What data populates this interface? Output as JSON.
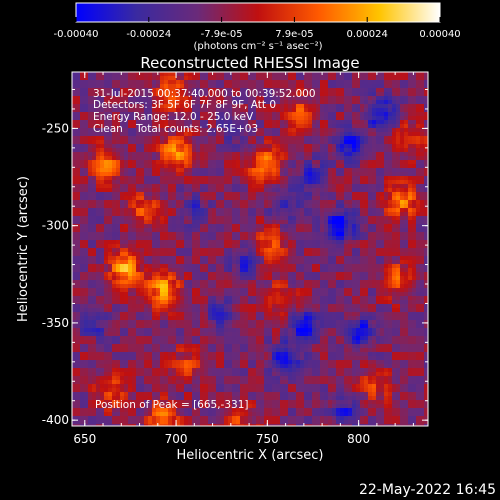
{
  "colorbar": {
    "tick_labels": [
      "-0.00040",
      "-0.00024",
      "-7.9e-05",
      "7.9e-05",
      "0.00024",
      "0.00040"
    ],
    "unit_label": "(photons cm⁻² s⁻¹ asec⁻²)",
    "range": [
      -0.0004,
      0.0004
    ],
    "colors": [
      "#0000ff",
      "#3a2aa0",
      "#6a2a7a",
      "#c01010",
      "#ff5a00",
      "#ffc400",
      "#ffffff"
    ]
  },
  "title": "Reconstructed RHESSI Image",
  "info_lines": [
    "31-Jul-2015 00:37:40.000 to 00:39:52.000",
    "Detectors: 3F 5F 6F 7F 8F 9F, Att 0",
    "Energy Range: 12.0 - 25.0 keV",
    "Clean    Total counts: 2.65E+03"
  ],
  "peak_label": "Position of Peak = [665,-331]",
  "x_axis": {
    "label": "Heliocentric X (arcsec)",
    "ticks": [
      "650",
      "700",
      "750",
      "800"
    ],
    "range": [
      643,
      838
    ]
  },
  "y_axis": {
    "label": "Heliocentric Y (arcsec)",
    "ticks": [
      "-400",
      "-350",
      "-300",
      "-250"
    ],
    "range": [
      -403,
      -221
    ]
  },
  "footer_date": "22-May-2022 16:45",
  "image": {
    "peak": [
      665,
      -331
    ],
    "hot_regions": [
      {
        "x": 672,
        "y": -322,
        "level": 1.0
      },
      {
        "x": 693,
        "y": -333,
        "level": 0.95
      },
      {
        "x": 700,
        "y": -262,
        "level": 0.85
      },
      {
        "x": 662,
        "y": -268,
        "level": 0.7
      },
      {
        "x": 698,
        "y": -232,
        "level": 0.7
      },
      {
        "x": 748,
        "y": -268,
        "level": 0.75
      },
      {
        "x": 768,
        "y": -242,
        "level": 0.55
      },
      {
        "x": 823,
        "y": -287,
        "level": 0.8
      },
      {
        "x": 823,
        "y": -328,
        "level": 0.65
      },
      {
        "x": 752,
        "y": -310,
        "level": 0.55
      },
      {
        "x": 757,
        "y": -338,
        "level": 0.5
      },
      {
        "x": 682,
        "y": -292,
        "level": 0.55
      },
      {
        "x": 665,
        "y": -385,
        "level": 0.55
      },
      {
        "x": 693,
        "y": -400,
        "level": 0.75
      },
      {
        "x": 735,
        "y": -400,
        "level": 0.45
      },
      {
        "x": 705,
        "y": -372,
        "level": 0.45
      },
      {
        "x": 810,
        "y": -382,
        "level": 0.45
      },
      {
        "x": 830,
        "y": -255,
        "level": 0.55
      }
    ],
    "cold_regions": [
      {
        "x": 790,
        "y": -300,
        "level": 0.9
      },
      {
        "x": 812,
        "y": -242,
        "level": 0.85
      },
      {
        "x": 795,
        "y": -258,
        "level": 0.8
      },
      {
        "x": 770,
        "y": -352,
        "level": 0.75
      },
      {
        "x": 760,
        "y": -368,
        "level": 0.8
      },
      {
        "x": 802,
        "y": -355,
        "level": 0.7
      },
      {
        "x": 792,
        "y": -395,
        "level": 0.6
      },
      {
        "x": 760,
        "y": -290,
        "level": 0.5
      },
      {
        "x": 738,
        "y": -320,
        "level": 0.5
      },
      {
        "x": 710,
        "y": -292,
        "level": 0.45
      },
      {
        "x": 732,
        "y": -250,
        "level": 0.45
      },
      {
        "x": 775,
        "y": -275,
        "level": 0.55
      },
      {
        "x": 655,
        "y": -350,
        "level": 0.45
      },
      {
        "x": 724,
        "y": -345,
        "level": 0.4
      }
    ]
  }
}
